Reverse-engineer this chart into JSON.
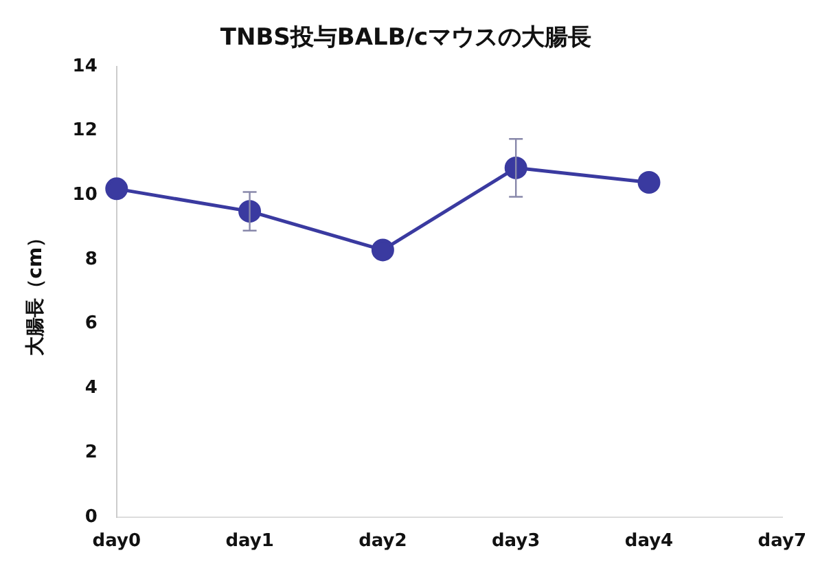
{
  "chart_data": {
    "type": "line",
    "title": "TNBS投与BALB/cマウスの大腸長",
    "ylabel": "大腸長（cm）",
    "categories": [
      "day0",
      "day1",
      "day2",
      "day3",
      "day4",
      "day7"
    ],
    "series": [
      {
        "color": "#3a3aa0",
        "values": [
          10.2,
          9.5,
          8.3,
          10.85,
          10.4,
          null
        ],
        "errors": [
          null,
          0.6,
          null,
          0.9,
          null,
          null
        ]
      }
    ],
    "ylim": [
      0,
      14
    ],
    "yticks": [
      0,
      2,
      4,
      6,
      8,
      10,
      12,
      14
    ],
    "grid": false,
    "legend": false,
    "marker": "circle",
    "line_style": "solid"
  }
}
